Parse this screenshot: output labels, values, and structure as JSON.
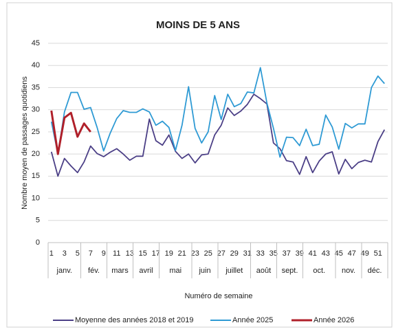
{
  "chart_data": {
    "type": "line",
    "title": "MOINS DE 5 ANS",
    "y_label": "Nombre moyen de passages quotidiens",
    "x_label": "Numéro de semaine",
    "categories": [
      1,
      null,
      3,
      null,
      5,
      null,
      7,
      null,
      9,
      null,
      11,
      null,
      13,
      null,
      15,
      null,
      17,
      null,
      19,
      null,
      21,
      null,
      23,
      null,
      25,
      null,
      27,
      null,
      29,
      null,
      31,
      null,
      33,
      null,
      35,
      null,
      37,
      null,
      39,
      null,
      41,
      null,
      43,
      null,
      45,
      null,
      47,
      null,
      49,
      null,
      51,
      null
    ],
    "groups": [
      {
        "label": "janv.",
        "count": 5
      },
      {
        "label": "fév.",
        "count": 4
      },
      {
        "label": "mars",
        "count": 4
      },
      {
        "label": "avril",
        "count": 4
      },
      {
        "label": "mai",
        "count": 5
      },
      {
        "label": "juin",
        "count": 4
      },
      {
        "label": "juillet",
        "count": 5
      },
      {
        "label": "août",
        "count": 4
      },
      {
        "label": "sept.",
        "count": 4
      },
      {
        "label": "oct.",
        "count": 5
      },
      {
        "label": "nov.",
        "count": 4
      },
      {
        "label": "déc.",
        "count": 4
      }
    ],
    "series": [
      {
        "name": "Moyenne des années 2018 et 2019",
        "color": "#4b3f86",
        "values": [
          20.5,
          15,
          19,
          17.3,
          15.8,
          18.2,
          21.8,
          20.1,
          19.4,
          20.4,
          21.2,
          20,
          18.6,
          19.5,
          19.5,
          27.9,
          23,
          22,
          24.3,
          20.6,
          19,
          20,
          18,
          19.8,
          20,
          24.3,
          26.5,
          30.4,
          28.7,
          29.7,
          31.2,
          33.5,
          32.5,
          31.3,
          22.5,
          21.2,
          18.5,
          18.2,
          15.4,
          19.4,
          15.8,
          18.4,
          20,
          20.5,
          15.5,
          18.8,
          16.7,
          18.1,
          18.6,
          18.2,
          22.8,
          25.5
        ]
      },
      {
        "name": "Année 2025",
        "color": "#2e9ad4",
        "values": [
          27.3,
          20,
          29.5,
          33.9,
          33.9,
          30.1,
          30.5,
          26,
          20.7,
          24.7,
          28,
          29.8,
          29.4,
          29.4,
          30.2,
          29.5,
          26.5,
          27.4,
          26,
          20.8,
          26.5,
          35.2,
          25.8,
          22.5,
          25,
          33.2,
          27.8,
          33.5,
          30.7,
          31.4,
          34,
          33.8,
          39.5,
          31.5,
          25.8,
          19.3,
          23.8,
          23.7,
          21.9,
          25.6,
          21.9,
          22.2,
          28.8,
          26.1,
          21.1,
          26.9,
          25.9,
          26.8,
          26.8,
          35,
          37.6,
          35.9
        ]
      },
      {
        "name": "Année 2026",
        "color": "#b0202a",
        "values": [
          29.8,
          20,
          28.2,
          29.3,
          23.9,
          26.9,
          25,
          null,
          null,
          null,
          null,
          null,
          null,
          null,
          null,
          null,
          null,
          null,
          null,
          null,
          null,
          null,
          null,
          null,
          null,
          null,
          null,
          null,
          null,
          null,
          null,
          null,
          null,
          null,
          null,
          null,
          null,
          null,
          null,
          null,
          null,
          null,
          null,
          null,
          null,
          null,
          null,
          null,
          null,
          null,
          null,
          null
        ]
      }
    ],
    "ylim": [
      0,
      45
    ],
    "yticks": [
      0,
      5,
      10,
      15,
      20,
      25,
      30,
      35,
      40,
      45
    ],
    "grid": true
  }
}
